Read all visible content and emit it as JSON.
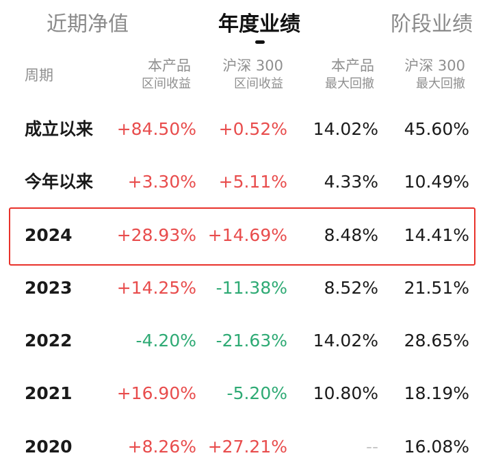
{
  "tabs": [
    {
      "label": "近期净值",
      "active": false
    },
    {
      "label": "年度业绩",
      "active": true
    },
    {
      "label": "阶段业绩",
      "active": false
    }
  ],
  "headers": {
    "period": "周期",
    "product_return": [
      "本产品",
      "区间收益"
    ],
    "index_return": [
      "沪深 300",
      "区间收益"
    ],
    "product_drawdown": [
      "本产品",
      "最大回撤"
    ],
    "index_drawdown": [
      "沪深 300",
      "最大回撤"
    ]
  },
  "colors": {
    "positive": "#e84c4c",
    "negative": "#2eaa74",
    "highlight_border": "#e8312a"
  },
  "rows": [
    {
      "period": "成立以来",
      "product_return": "+84.50%",
      "index_return": "+0.52%",
      "product_drawdown": "14.02%",
      "index_drawdown": "45.60%"
    },
    {
      "period": "今年以来",
      "product_return": "+3.30%",
      "index_return": "+5.11%",
      "product_drawdown": "4.33%",
      "index_drawdown": "10.49%"
    },
    {
      "period": "2024",
      "product_return": "+28.93%",
      "index_return": "+14.69%",
      "product_drawdown": "8.48%",
      "index_drawdown": "14.41%",
      "highlighted": true
    },
    {
      "period": "2023",
      "product_return": "+14.25%",
      "index_return": "-11.38%",
      "product_drawdown": "8.52%",
      "index_drawdown": "21.51%"
    },
    {
      "period": "2022",
      "product_return": "-4.20%",
      "index_return": "-21.63%",
      "product_drawdown": "14.02%",
      "index_drawdown": "28.65%"
    },
    {
      "period": "2021",
      "product_return": "+16.90%",
      "index_return": "-5.20%",
      "product_drawdown": "10.80%",
      "index_drawdown": "18.19%"
    },
    {
      "period": "2020",
      "product_return": "+8.26%",
      "index_return": "+27.21%",
      "product_drawdown": "--",
      "index_drawdown": "16.08%"
    }
  ]
}
